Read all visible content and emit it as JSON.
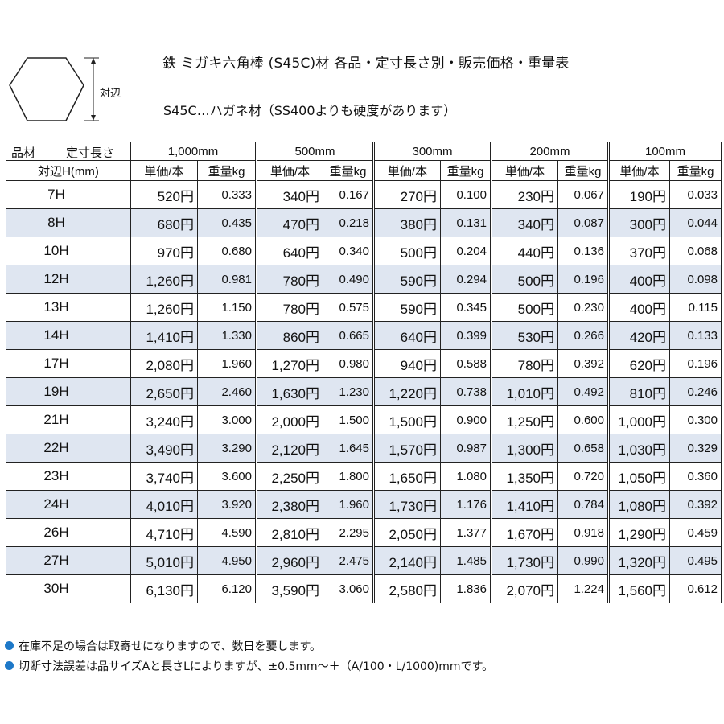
{
  "header": {
    "title": "鉄 ミガキ六角棒 (S45C)材 各品・定寸長さ別・販売価格・重量表",
    "subtitle": "S45C…ハガネ材（SS400よりも硬度があります）",
    "hex_label": "対辺"
  },
  "table": {
    "corner_material": "品材",
    "corner_length": "定寸長さ",
    "corner_size": "対辺H(mm)",
    "lengths": [
      "1,000mm",
      "500mm",
      "300mm",
      "200mm",
      "100mm"
    ],
    "unit_price_label": "単価/本",
    "weight_label": "重量kg",
    "rows": [
      {
        "size": "7H",
        "cells": [
          "520円",
          "0.333",
          "340円",
          "0.167",
          "270円",
          "0.100",
          "230円",
          "0.067",
          "190円",
          "0.033"
        ]
      },
      {
        "size": "8H",
        "cells": [
          "680円",
          "0.435",
          "470円",
          "0.218",
          "380円",
          "0.131",
          "340円",
          "0.087",
          "300円",
          "0.044"
        ]
      },
      {
        "size": "10H",
        "cells": [
          "970円",
          "0.680",
          "640円",
          "0.340",
          "500円",
          "0.204",
          "440円",
          "0.136",
          "370円",
          "0.068"
        ]
      },
      {
        "size": "12H",
        "cells": [
          "1,260円",
          "0.981",
          "780円",
          "0.490",
          "590円",
          "0.294",
          "500円",
          "0.196",
          "400円",
          "0.098"
        ]
      },
      {
        "size": "13H",
        "cells": [
          "1,260円",
          "1.150",
          "780円",
          "0.575",
          "590円",
          "0.345",
          "500円",
          "0.230",
          "400円",
          "0.115"
        ]
      },
      {
        "size": "14H",
        "cells": [
          "1,410円",
          "1.330",
          "860円",
          "0.665",
          "640円",
          "0.399",
          "530円",
          "0.266",
          "420円",
          "0.133"
        ]
      },
      {
        "size": "17H",
        "cells": [
          "2,080円",
          "1.960",
          "1,270円",
          "0.980",
          "940円",
          "0.588",
          "780円",
          "0.392",
          "620円",
          "0.196"
        ]
      },
      {
        "size": "19H",
        "cells": [
          "2,650円",
          "2.460",
          "1,630円",
          "1.230",
          "1,220円",
          "0.738",
          "1,010円",
          "0.492",
          "810円",
          "0.246"
        ]
      },
      {
        "size": "21H",
        "cells": [
          "3,240円",
          "3.000",
          "2,000円",
          "1.500",
          "1,500円",
          "0.900",
          "1,250円",
          "0.600",
          "1,000円",
          "0.300"
        ]
      },
      {
        "size": "22H",
        "cells": [
          "3,490円",
          "3.290",
          "2,120円",
          "1.645",
          "1,570円",
          "0.987",
          "1,300円",
          "0.658",
          "1,030円",
          "0.329"
        ]
      },
      {
        "size": "23H",
        "cells": [
          "3,740円",
          "3.600",
          "2,250円",
          "1.800",
          "1,650円",
          "1.080",
          "1,350円",
          "0.720",
          "1,050円",
          "0.360"
        ]
      },
      {
        "size": "24H",
        "cells": [
          "4,010円",
          "3.920",
          "2,380円",
          "1.960",
          "1,730円",
          "1.176",
          "1,410円",
          "0.784",
          "1,080円",
          "0.392"
        ]
      },
      {
        "size": "26H",
        "cells": [
          "4,710円",
          "4.590",
          "2,810円",
          "2.295",
          "2,050円",
          "1.377",
          "1,670円",
          "0.918",
          "1,290円",
          "0.459"
        ]
      },
      {
        "size": "27H",
        "cells": [
          "5,010円",
          "4.950",
          "2,960円",
          "2.475",
          "2,140円",
          "1.485",
          "1,730円",
          "0.990",
          "1,320円",
          "0.495"
        ]
      },
      {
        "size": "30H",
        "cells": [
          "6,130円",
          "6.120",
          "3,590円",
          "3.060",
          "2,580円",
          "1.836",
          "2,070円",
          "1.224",
          "1,560円",
          "0.612"
        ]
      }
    ]
  },
  "notes": [
    "在庫不足の場合は取寄せになりますので、数日を要します。",
    "切断寸法誤差は品サイズAと長さLによりますが、±0.5mm～＋（A/100・L/1000)mmです。"
  ],
  "colors": {
    "row_stripe": "#dfe6f1",
    "bullet": "#1d78c8"
  }
}
